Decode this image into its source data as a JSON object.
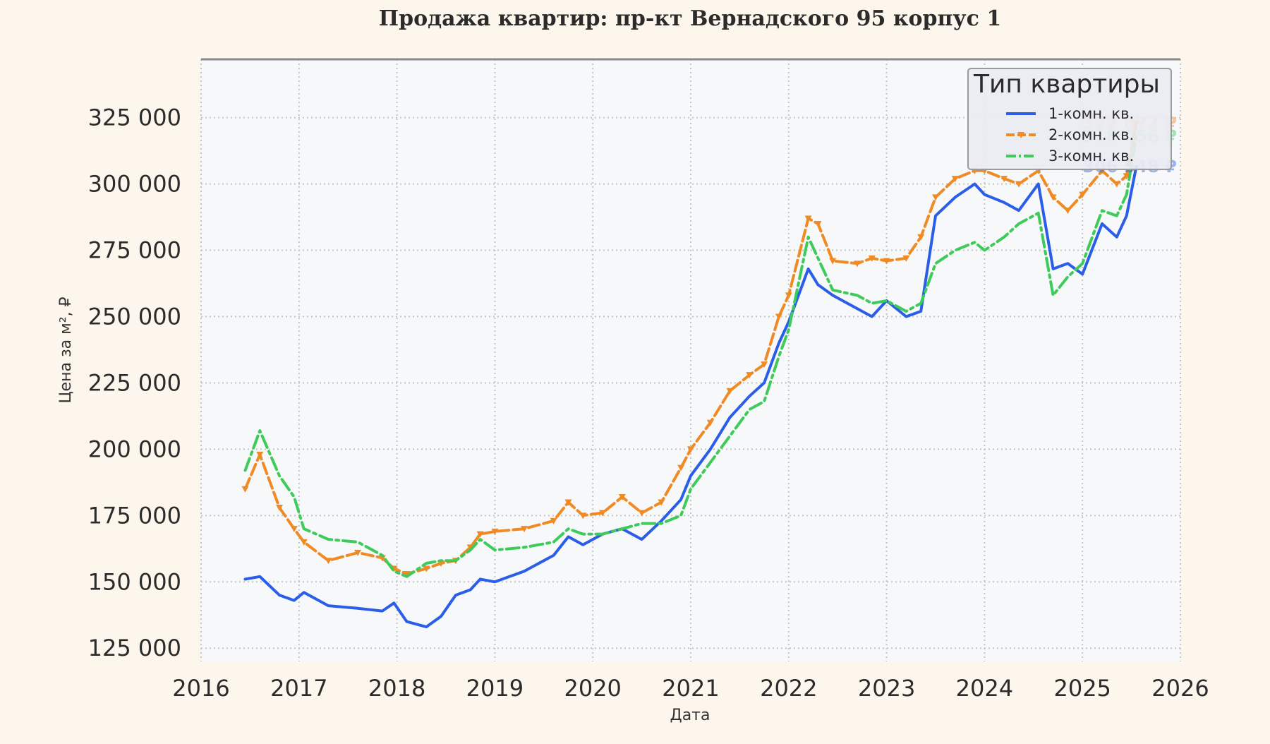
{
  "chart_data": {
    "type": "line",
    "title": "Продажа квартир: пр-кт Вернадского 95 корпус 1",
    "xlabel": "Дата",
    "ylabel": "Цена за м², ₽",
    "xlim": [
      2016.0,
      2026.0
    ],
    "ylim": [
      120000,
      347000
    ],
    "x_ticks": [
      "2016",
      "2017",
      "2018",
      "2019",
      "2020",
      "2021",
      "2022",
      "2023",
      "2024",
      "2025",
      "2026"
    ],
    "y_ticks": [
      "125 000",
      "150 000",
      "175 000",
      "200 000",
      "225 000",
      "250 000",
      "275 000",
      "300 000",
      "325 000"
    ],
    "grid": true,
    "legend": {
      "title": "Тип квартиры",
      "position": "top-right"
    },
    "end_labels": [
      "322 872 ₽",
      "318 056 ₽",
      "306 548 ₽"
    ],
    "series": [
      {
        "name": "1-комн. кв.",
        "color": "#2a5ee8",
        "style": "solid",
        "end_label": "306 548 ₽",
        "x": [
          2016.45,
          2016.6,
          2016.8,
          2016.95,
          2017.05,
          2017.3,
          2017.6,
          2017.85,
          2017.97,
          2018.1,
          2018.3,
          2018.45,
          2018.6,
          2018.75,
          2018.85,
          2019.0,
          2019.3,
          2019.6,
          2019.75,
          2019.9,
          2020.1,
          2020.3,
          2020.5,
          2020.7,
          2020.9,
          2021.0,
          2021.2,
          2021.4,
          2021.6,
          2021.75,
          2021.9,
          2022.0,
          2022.2,
          2022.3,
          2022.45,
          2022.7,
          2022.85,
          2023.0,
          2023.2,
          2023.35,
          2023.5,
          2023.7,
          2023.9,
          2024.0,
          2024.2,
          2024.35,
          2024.55,
          2024.7,
          2024.85,
          2025.0,
          2025.2,
          2025.35,
          2025.45,
          2025.55
        ],
        "y": [
          151000,
          152000,
          145000,
          143000,
          146000,
          141000,
          140000,
          139000,
          142000,
          135000,
          133000,
          137000,
          145000,
          147000,
          151000,
          150000,
          154000,
          160000,
          167000,
          164000,
          168000,
          170000,
          166000,
          173000,
          181000,
          190000,
          200000,
          212000,
          220000,
          225000,
          240000,
          248000,
          268000,
          262000,
          258000,
          253000,
          250000,
          256000,
          250000,
          252000,
          288000,
          295000,
          300000,
          296000,
          293000,
          290000,
          300000,
          268000,
          270000,
          266000,
          285000,
          280000,
          288000,
          306548
        ]
      },
      {
        "name": "2-комн. кв.",
        "color": "#f08a24",
        "style": "dashed-marker",
        "end_label": "322 872 ₽",
        "x": [
          2016.45,
          2016.6,
          2016.8,
          2016.95,
          2017.05,
          2017.3,
          2017.6,
          2017.85,
          2017.97,
          2018.1,
          2018.3,
          2018.45,
          2018.6,
          2018.75,
          2018.85,
          2019.0,
          2019.3,
          2019.6,
          2019.75,
          2019.9,
          2020.1,
          2020.3,
          2020.5,
          2020.7,
          2020.9,
          2021.0,
          2021.2,
          2021.4,
          2021.6,
          2021.75,
          2021.9,
          2022.0,
          2022.2,
          2022.3,
          2022.45,
          2022.7,
          2022.85,
          2023.0,
          2023.2,
          2023.35,
          2023.5,
          2023.7,
          2023.9,
          2024.0,
          2024.2,
          2024.35,
          2024.55,
          2024.7,
          2024.85,
          2025.0,
          2025.2,
          2025.35,
          2025.45,
          2025.55
        ],
        "y": [
          185000,
          198000,
          178000,
          170000,
          165000,
          158000,
          161000,
          159000,
          155000,
          153000,
          155000,
          157000,
          158000,
          163000,
          168000,
          169000,
          170000,
          173000,
          180000,
          175000,
          176000,
          182000,
          176000,
          180000,
          193000,
          200000,
          210000,
          222000,
          228000,
          232000,
          250000,
          258000,
          287000,
          285000,
          271000,
          270000,
          272000,
          271000,
          272000,
          280000,
          295000,
          302000,
          305000,
          305000,
          302000,
          300000,
          305000,
          295000,
          290000,
          296000,
          305000,
          300000,
          303000,
          322872
        ]
      },
      {
        "name": "3-комн. кв.",
        "color": "#3ecb5a",
        "style": "dashdot",
        "end_label": "318 056 ₽",
        "x": [
          2016.45,
          2016.6,
          2016.8,
          2016.95,
          2017.05,
          2017.3,
          2017.6,
          2017.85,
          2017.97,
          2018.1,
          2018.3,
          2018.45,
          2018.6,
          2018.75,
          2018.85,
          2019.0,
          2019.3,
          2019.6,
          2019.75,
          2019.9,
          2020.1,
          2020.3,
          2020.5,
          2020.7,
          2020.9,
          2021.0,
          2021.2,
          2021.4,
          2021.6,
          2021.75,
          2021.9,
          2022.0,
          2022.2,
          2022.3,
          2022.45,
          2022.7,
          2022.85,
          2023.0,
          2023.2,
          2023.35,
          2023.5,
          2023.7,
          2023.9,
          2024.0,
          2024.2,
          2024.35,
          2024.55,
          2024.7,
          2024.85,
          2025.0,
          2025.2,
          2025.35,
          2025.45,
          2025.55
        ],
        "y": [
          192000,
          207000,
          190000,
          182000,
          170000,
          166000,
          165000,
          160000,
          154000,
          152000,
          157000,
          158000,
          158000,
          162000,
          166000,
          162000,
          163000,
          165000,
          170000,
          168000,
          168000,
          170000,
          172000,
          172000,
          175000,
          185000,
          195000,
          205000,
          215000,
          218000,
          235000,
          245000,
          280000,
          272000,
          260000,
          258000,
          255000,
          256000,
          252000,
          255000,
          270000,
          275000,
          278000,
          275000,
          280000,
          285000,
          289000,
          258000,
          265000,
          270000,
          290000,
          288000,
          296000,
          318056
        ]
      }
    ]
  }
}
